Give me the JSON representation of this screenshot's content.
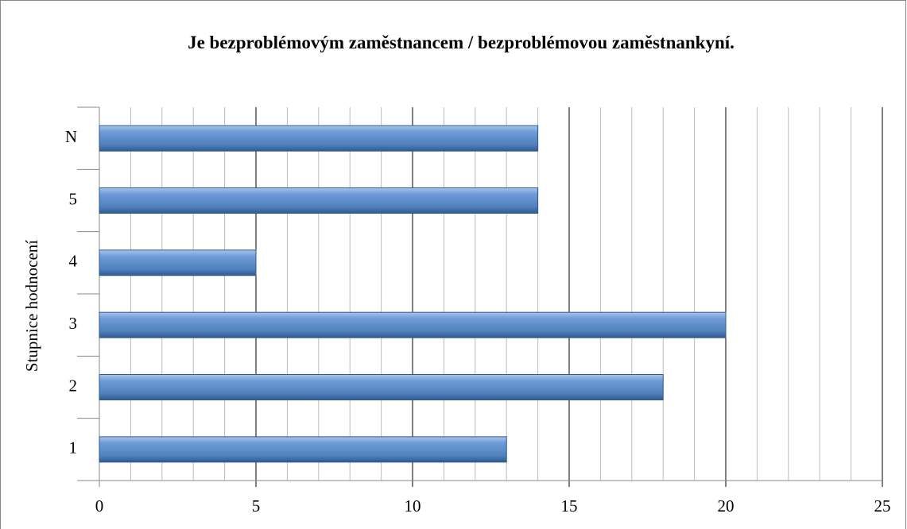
{
  "chart_data": {
    "type": "barh",
    "title": "Je bezproblémovým zaměstnancem / bezproblémovou zaměstnankyní.",
    "ylabel": "Stupnice hodnocení",
    "categories": [
      "1",
      "2",
      "3",
      "4",
      "5",
      "N"
    ],
    "values": [
      13,
      18,
      20,
      5,
      14,
      14
    ],
    "color": "#4f81bd",
    "xlim": [
      0,
      25
    ],
    "xticks": [
      0,
      5,
      10,
      15,
      20,
      25
    ],
    "xminorticks": [
      1,
      2,
      3,
      4,
      6,
      7,
      8,
      9,
      11,
      12,
      13,
      14,
      16,
      17,
      18,
      19,
      21,
      22,
      23,
      24
    ],
    "grid": true
  }
}
